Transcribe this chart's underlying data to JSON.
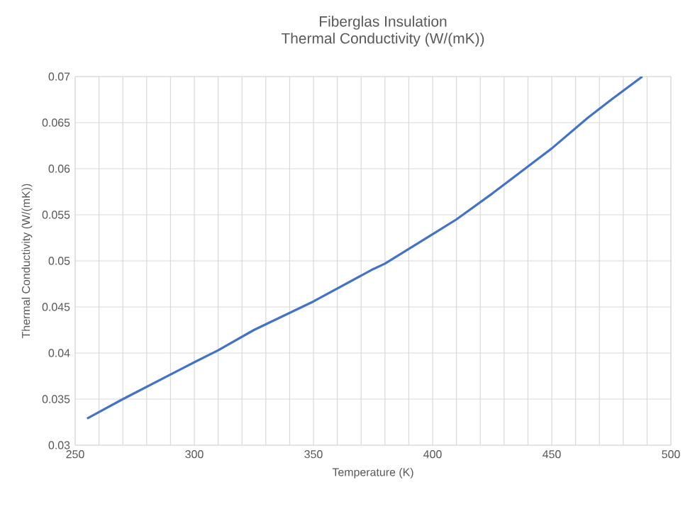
{
  "chart_data": {
    "type": "line",
    "title": "Fiberglas Insulation",
    "subtitle": "Thermal Conductivity  (W/(mK))",
    "xlabel": "Temperature  (K)",
    "ylabel": "Thermal Conductivity  (W/(mK))",
    "x": [
      255,
      270,
      300,
      310,
      325,
      350,
      375,
      380,
      400,
      410,
      425,
      450,
      465,
      475,
      488
    ],
    "series": [
      {
        "color": "#4472c4",
        "values": [
          0.0329,
          0.035,
          0.039,
          0.0403,
          0.0425,
          0.0456,
          0.0491,
          0.0497,
          0.0529,
          0.0545,
          0.0573,
          0.0622,
          0.0655,
          0.0675,
          0.07
        ]
      }
    ],
    "xlim": [
      250,
      500
    ],
    "ylim": [
      0.03,
      0.07
    ],
    "xticks": [
      250,
      {
        "value": 260,
        "label": null
      },
      {
        "value": 270,
        "label": null
      },
      {
        "value": 280,
        "label": null
      },
      {
        "value": 290,
        "label": null
      },
      300,
      {
        "value": 310,
        "label": null
      },
      {
        "value": 320,
        "label": null
      },
      {
        "value": 330,
        "label": null
      },
      {
        "value": 340,
        "label": null
      },
      350,
      {
        "value": 360,
        "label": null
      },
      {
        "value": 370,
        "label": null
      },
      {
        "value": 380,
        "label": null
      },
      {
        "value": 390,
        "label": null
      },
      400,
      {
        "value": 410,
        "label": null
      },
      {
        "value": 420,
        "label": null
      },
      {
        "value": 430,
        "label": null
      },
      {
        "value": 440,
        "label": null
      },
      450,
      {
        "value": 460,
        "label": null
      },
      {
        "value": 470,
        "label": null
      },
      {
        "value": 480,
        "label": null
      },
      {
        "value": 490,
        "label": null
      },
      500
    ],
    "yticks": [
      0.03,
      0.035,
      0.04,
      0.045,
      0.05,
      0.055,
      0.06,
      0.065,
      0.07
    ],
    "grid": true,
    "marker": "none",
    "line_style": "solid"
  }
}
